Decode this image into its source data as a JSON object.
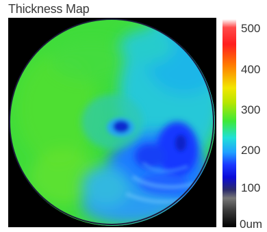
{
  "panel": {
    "title": "Thickness Map"
  },
  "colorbar": {
    "ticks": [
      "500",
      "400",
      "300",
      "200",
      "100",
      "0um"
    ],
    "scale_colors": [
      "#ffffff",
      "#ff1e1e",
      "#ff7a00",
      "#f2e600",
      "#3ee838",
      "#20e0d8",
      "#1a38ff",
      "#0a0ad8",
      "#777777",
      "#000000"
    ]
  },
  "map": {
    "background_color": "#000000",
    "dominant_color": "#3cdc38",
    "thin_region_color": "#1a4cff"
  }
}
